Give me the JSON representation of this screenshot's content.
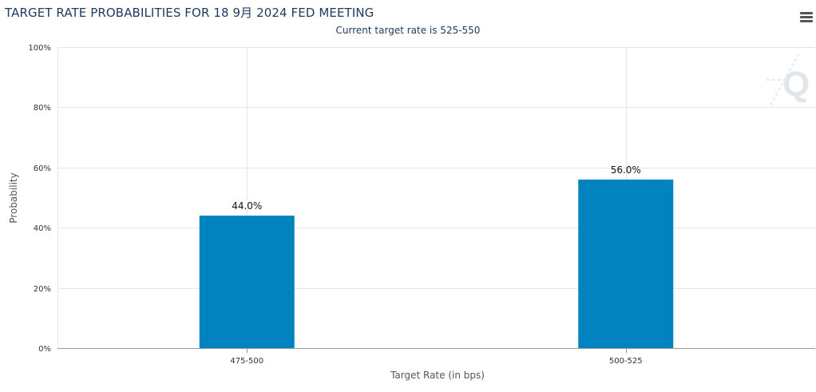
{
  "header": {
    "title": "TARGET RATE PROBABILITIES FOR 18 9月 2024 FED MEETING",
    "subtitle": "Current target rate is 525-550",
    "menu_icon": "hamburger-menu-icon"
  },
  "watermark_icon": "q-logo-icon",
  "colors": {
    "bar": "#0083be",
    "grid": "#e6e6e6",
    "axis": "#999999"
  },
  "chart_data": {
    "type": "bar",
    "categories": [
      "475-500",
      "500-525"
    ],
    "values": [
      44.0,
      56.0
    ],
    "data_labels": [
      "44.0%",
      "56.0%"
    ],
    "xlabel": "Target Rate (in bps)",
    "ylabel": "Probability",
    "ylim": [
      0,
      100
    ],
    "yticks": [
      0,
      20,
      40,
      60,
      80,
      100
    ],
    "ytick_labels": [
      "0%",
      "20%",
      "40%",
      "60%",
      "80%",
      "100%"
    ],
    "grid": true,
    "legend": "none"
  }
}
